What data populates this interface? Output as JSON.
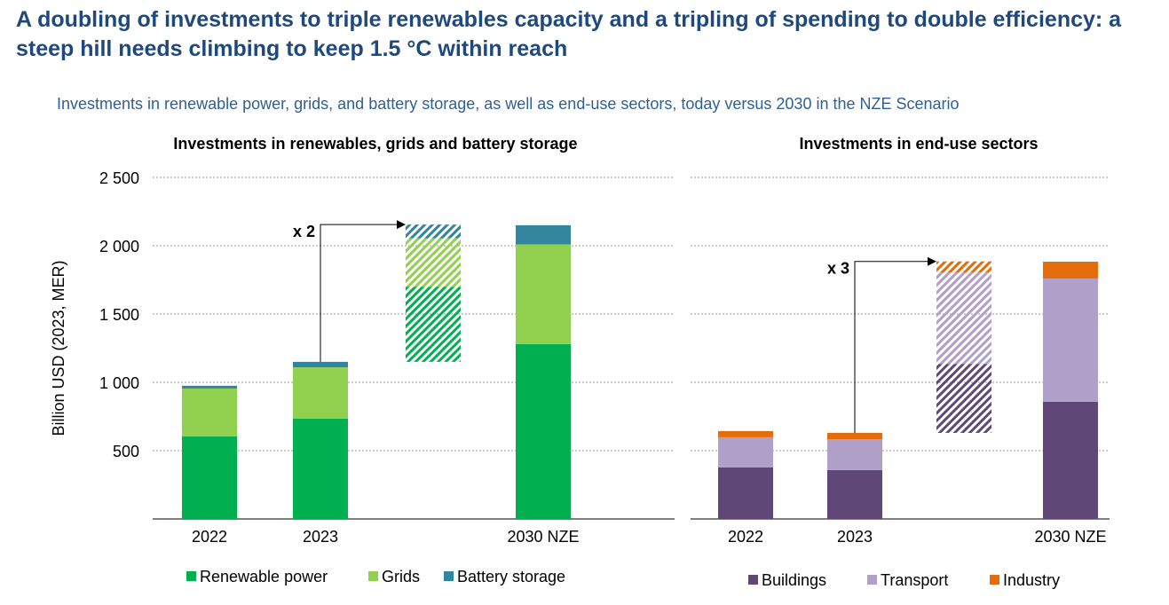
{
  "title": "A doubling of investments to triple renewables capacity and a tripling of spending to double efficiency: a steep hill needs climbing to keep 1.5 °C within reach",
  "subtitle": "Investments in renewable power, grids, and battery storage, as well as end-use sectors, today versus 2030 in the NZE Scenario",
  "chart_data": [
    {
      "type": "bar",
      "stacked": true,
      "title": "Investments in renewables, grids and battery storage",
      "ylabel": "Billion USD (2023, MER)",
      "ylim": [
        0,
        2500
      ],
      "yticks": [
        500,
        1000,
        1500,
        2000,
        2500
      ],
      "ytick_labels": [
        "500",
        "1 000",
        "1 500",
        "2 000",
        "2 500"
      ],
      "categories": [
        "2022",
        "2023",
        "",
        "2030 NZE"
      ],
      "series": [
        {
          "name": "Renewable power",
          "color": "#00b050",
          "values": [
            605,
            735,
            550,
            1280
          ]
        },
        {
          "name": "Grids",
          "color": "#92d050",
          "values": [
            350,
            375,
            355,
            730
          ]
        },
        {
          "name": "Battery storage",
          "color": "#31859c",
          "values": [
            20,
            40,
            100,
            140
          ]
        }
      ],
      "hatched_bar": {
        "category_index": 2,
        "base": 1150
      },
      "annotation": {
        "text": "x 2",
        "from_category": 1,
        "to_category": 2
      },
      "grid": true,
      "legend": "bottom"
    },
    {
      "type": "bar",
      "stacked": true,
      "title": "Investments in end-use sectors",
      "ylim": [
        0,
        2500
      ],
      "yticks": [
        500,
        1000,
        1500,
        2000,
        2500
      ],
      "categories": [
        "2022",
        "2023",
        "",
        "2030 NZE"
      ],
      "series": [
        {
          "name": "Buildings",
          "color": "#5f4778",
          "values": [
            378,
            358,
            505,
            858
          ]
        },
        {
          "name": "Transport",
          "color": "#b09fc8",
          "values": [
            220,
            225,
            670,
            902
          ]
        },
        {
          "name": "Industry",
          "color": "#e46c0a",
          "values": [
            45,
            47,
            80,
            123
          ]
        }
      ],
      "hatched_bar": {
        "category_index": 2,
        "base": 630
      },
      "annotation": {
        "text": "x 3",
        "from_category": 1,
        "to_category": 2
      },
      "grid": true,
      "legend": "bottom"
    }
  ]
}
